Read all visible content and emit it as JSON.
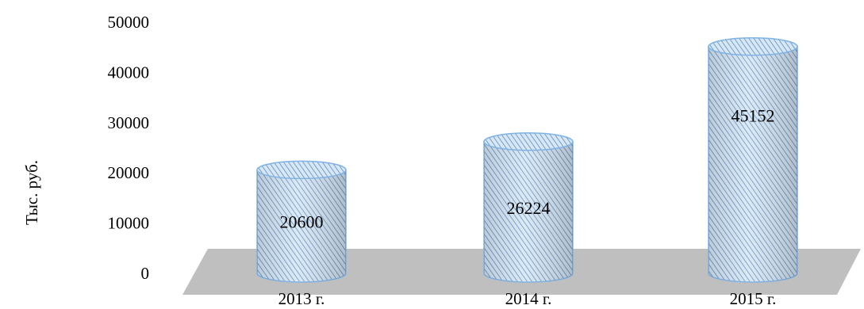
{
  "chart_data": {
    "type": "bar",
    "style": "3d-cylinder",
    "title": "",
    "xlabel": "",
    "ylabel": "Тыс. руб.",
    "ylim": [
      0,
      50000
    ],
    "yticks": [
      "0",
      "10000",
      "20000",
      "30000",
      "40000",
      "50000"
    ],
    "categories": [
      "2013 г.",
      "2014 г.",
      "2015 г."
    ],
    "values": [
      20600,
      26224,
      45152
    ],
    "data_labels": [
      "20600",
      "26224",
      "45152"
    ],
    "grid": false,
    "legend": "none",
    "colors": {
      "bar_fill": "#d6e6f4",
      "bar_hatch": "#4f83b8",
      "bar_outline": "#7fb2e5",
      "floor": "#bfbfbf"
    }
  }
}
